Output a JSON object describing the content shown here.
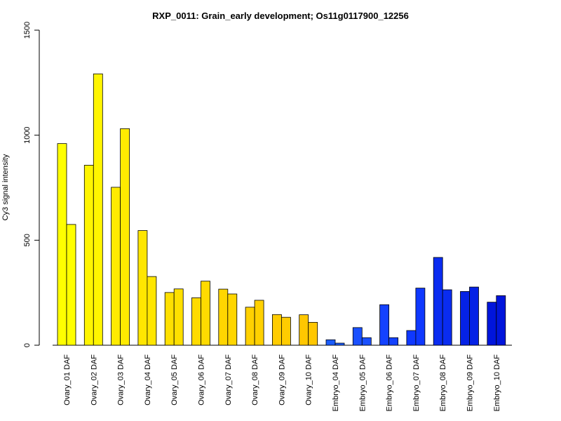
{
  "chart_data": {
    "type": "bar",
    "title": "RXP_0011: Grain_early development; Os11g0117900_12256",
    "xlabel": "",
    "ylabel": "Cy3 signal intensity",
    "ylim": [
      0,
      1500
    ],
    "yticks": [
      "0",
      "500",
      "1000",
      "1500"
    ],
    "categories": [
      "Ovary_01 DAF",
      "Ovary_02 DAF",
      "Ovary_03 DAF",
      "Ovary_04 DAF",
      "Ovary_05 DAF",
      "Ovary_06 DAF",
      "Ovary_07 DAF",
      "Ovary_08 DAF",
      "Ovary_09 DAF",
      "Ovary_10 DAF",
      "Embryo_04 DAF",
      "Embryo_05 DAF",
      "Embryo_06 DAF",
      "Embryo_07 DAF",
      "Embryo_08 DAF",
      "Embryo_09 DAF",
      "Embryo_10 DAF"
    ],
    "series": [
      {
        "values": [
          960,
          857,
          752,
          546,
          251,
          226,
          267,
          181,
          146,
          145,
          26,
          84,
          193,
          70,
          418,
          256,
          205
        ]
      },
      {
        "values": [
          575,
          1292,
          1031,
          327,
          268,
          305,
          244,
          214,
          133,
          109,
          10,
          36,
          36,
          272,
          264,
          277,
          236
        ]
      }
    ],
    "bar_colors": [
      "#ffff00",
      "#fff500",
      "#ffeb00",
      "#ffe600",
      "#ffe000",
      "#ffdb00",
      "#ffd600",
      "#ffd100",
      "#ffcc00",
      "#ffc700",
      "#1a5cff",
      "#1a50ff",
      "#1442ff",
      "#0f38ff",
      "#0a2cf0",
      "#0522e6",
      "#0015dc"
    ],
    "grid": false,
    "legend": "none"
  }
}
